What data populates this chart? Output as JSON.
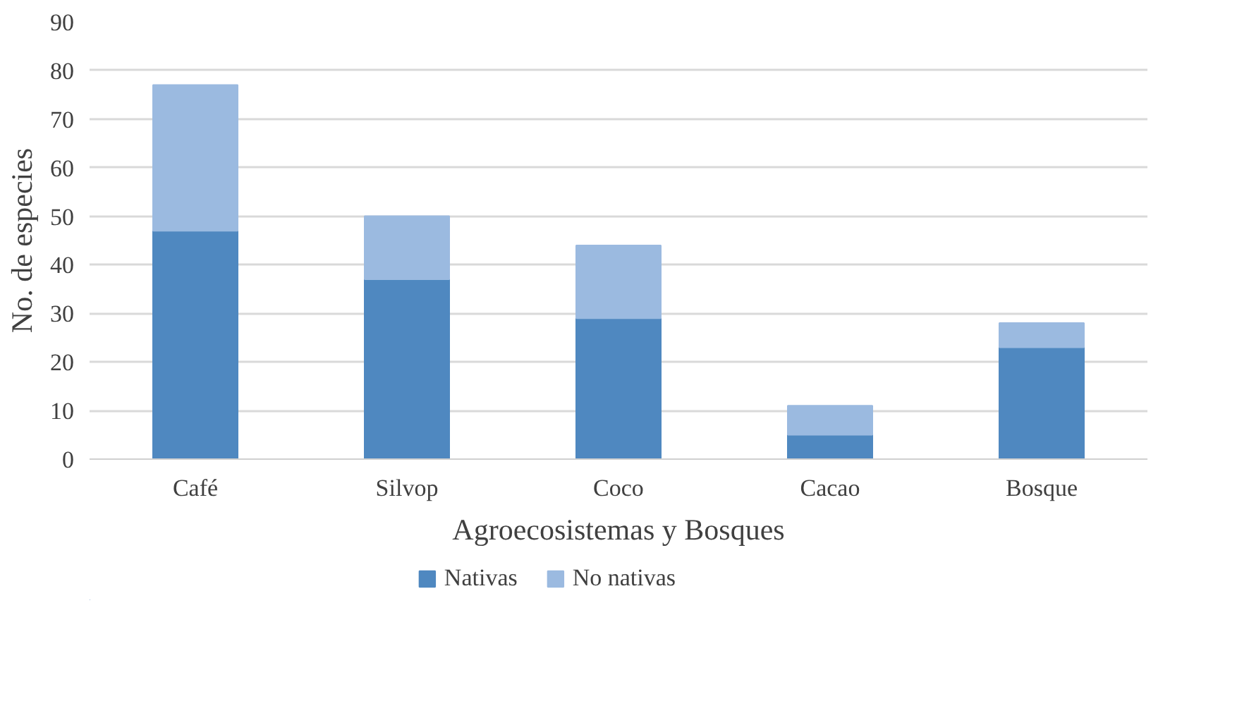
{
  "chart_data": {
    "type": "bar",
    "stacked": true,
    "xlabel": "Agroecosistemas y Bosques",
    "ylabel": "No. de especies",
    "categories": [
      "Café",
      "Silvop",
      "Coco",
      "Cacao",
      "Bosque"
    ],
    "series": [
      {
        "name": "Nativas",
        "color": "#4f88c0",
        "values": [
          47,
          37,
          29,
          5,
          23
        ]
      },
      {
        "name": "No nativas",
        "color": "#9bbae0",
        "values": [
          30,
          13,
          15,
          6,
          5
        ]
      }
    ],
    "ylim": [
      0,
      90
    ],
    "yticks": [
      0,
      10,
      20,
      30,
      40,
      50,
      60,
      70,
      80,
      90
    ],
    "grid": "y",
    "legend": "bottom"
  }
}
